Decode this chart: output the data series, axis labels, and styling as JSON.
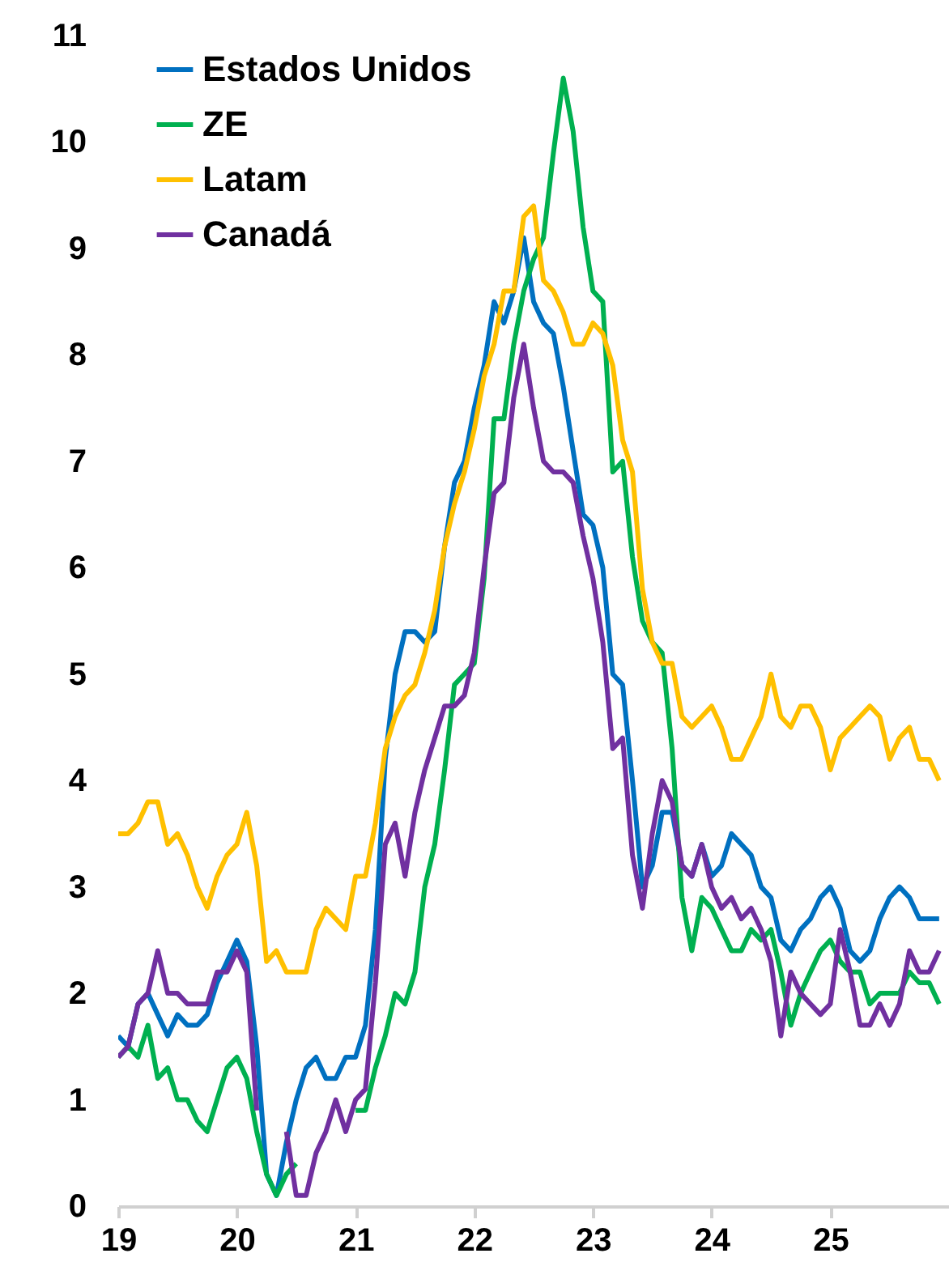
{
  "chart_data": {
    "type": "line",
    "x": [
      19,
      19.083,
      19.167,
      19.25,
      19.333,
      19.417,
      19.5,
      19.583,
      19.667,
      19.75,
      19.833,
      19.917,
      20,
      20.083,
      20.167,
      20.25,
      20.333,
      20.417,
      20.5,
      20.583,
      20.667,
      20.75,
      20.833,
      20.917,
      21,
      21.083,
      21.167,
      21.25,
      21.333,
      21.417,
      21.5,
      21.583,
      21.667,
      21.75,
      21.833,
      21.917,
      22,
      22.083,
      22.167,
      22.25,
      22.333,
      22.417,
      22.5,
      22.583,
      22.667,
      22.75,
      22.833,
      22.917,
      23,
      23.083,
      23.167,
      23.25,
      23.333,
      23.417,
      23.5,
      23.583,
      23.667,
      23.75,
      23.833,
      23.917,
      24,
      24.083,
      24.167,
      24.25,
      24.333,
      24.417,
      24.5,
      24.583,
      24.667,
      24.75,
      24.833,
      24.917,
      25,
      25.083,
      25.167,
      25.25,
      25.333,
      25.417,
      25.5,
      25.583,
      25.667,
      25.75,
      25.833,
      25.917
    ],
    "series": [
      {
        "name": "Estados Unidos",
        "color": "#0070c0",
        "values": [
          1.6,
          1.5,
          1.9,
          2.0,
          1.8,
          1.6,
          1.8,
          1.7,
          1.7,
          1.8,
          2.1,
          2.3,
          2.5,
          2.3,
          1.5,
          0.3,
          0.1,
          0.6,
          1.0,
          1.3,
          1.4,
          1.2,
          1.2,
          1.4,
          1.4,
          1.7,
          2.6,
          4.2,
          5.0,
          5.4,
          5.4,
          5.3,
          5.4,
          6.2,
          6.8,
          7.0,
          7.5,
          7.9,
          8.5,
          8.3,
          8.6,
          9.1,
          8.5,
          8.3,
          8.2,
          7.7,
          7.1,
          6.5,
          6.4,
          6.0,
          5.0,
          4.9,
          4.0,
          3.0,
          3.2,
          3.7,
          3.7,
          3.2,
          3.1,
          3.4,
          3.1,
          3.2,
          3.5,
          3.4,
          3.3,
          3.0,
          2.9,
          2.5,
          2.4,
          2.6,
          2.7,
          2.9,
          3.0,
          2.8,
          2.4,
          2.3,
          2.4,
          2.7,
          2.9,
          3.0,
          2.9,
          2.7,
          2.7,
          2.7
        ]
      },
      {
        "name": "ZE",
        "color": "#00b050",
        "values": [
          1.4,
          1.5,
          1.4,
          1.7,
          1.2,
          1.3,
          1.0,
          1.0,
          0.8,
          0.7,
          1.0,
          1.3,
          1.4,
          1.2,
          0.7,
          0.3,
          0.1,
          0.3,
          0.4,
          null,
          null,
          null,
          null,
          null,
          0.9,
          0.9,
          1.3,
          1.6,
          2.0,
          1.9,
          2.2,
          3.0,
          3.4,
          4.1,
          4.9,
          5.0,
          5.1,
          5.9,
          7.4,
          7.4,
          8.1,
          8.6,
          8.9,
          9.1,
          9.9,
          10.6,
          10.1,
          9.2,
          8.6,
          8.5,
          6.9,
          7.0,
          6.1,
          5.5,
          5.3,
          5.2,
          4.3,
          2.9,
          2.4,
          2.9,
          2.8,
          2.6,
          2.4,
          2.4,
          2.6,
          2.5,
          2.6,
          2.2,
          1.7,
          2.0,
          2.2,
          2.4,
          2.5,
          2.3,
          2.2,
          2.2,
          1.9,
          2.0,
          2.0,
          2.0,
          2.2,
          2.1,
          2.1,
          1.9
        ]
      },
      {
        "name": "Latam",
        "color": "#ffc000",
        "values": [
          3.5,
          3.5,
          3.6,
          3.8,
          3.8,
          3.4,
          3.5,
          3.3,
          3.0,
          2.8,
          3.1,
          3.3,
          3.4,
          3.7,
          3.2,
          2.3,
          2.4,
          2.2,
          2.2,
          2.2,
          2.6,
          2.8,
          2.7,
          2.6,
          3.1,
          3.1,
          3.6,
          4.3,
          4.6,
          4.8,
          4.9,
          5.2,
          5.6,
          6.2,
          6.6,
          6.9,
          7.3,
          7.8,
          8.1,
          8.6,
          8.6,
          9.3,
          9.4,
          8.7,
          8.6,
          8.4,
          8.1,
          8.1,
          8.3,
          8.2,
          7.9,
          7.2,
          6.9,
          5.8,
          5.3,
          5.1,
          5.1,
          4.6,
          4.5,
          4.6,
          4.7,
          4.5,
          4.2,
          4.2,
          4.4,
          4.6,
          5.0,
          4.6,
          4.5,
          4.7,
          4.7,
          4.5,
          4.1,
          4.4,
          4.5,
          4.6,
          4.7,
          4.6,
          4.2,
          4.4,
          4.5,
          4.2,
          4.2,
          4.0
        ]
      },
      {
        "name": "Canadá",
        "color": "#7030a0",
        "values": [
          1.4,
          1.5,
          1.9,
          2.0,
          2.4,
          2.0,
          2.0,
          1.9,
          1.9,
          1.9,
          2.2,
          2.2,
          2.4,
          2.2,
          0.9,
          null,
          null,
          0.7,
          0.1,
          0.1,
          0.5,
          0.7,
          1.0,
          0.7,
          1.0,
          1.1,
          2.1,
          3.4,
          3.6,
          3.1,
          3.7,
          4.1,
          4.4,
          4.7,
          4.7,
          4.8,
          5.2,
          6.0,
          6.7,
          6.8,
          7.6,
          8.1,
          7.5,
          7.0,
          6.9,
          6.9,
          6.8,
          6.3,
          5.9,
          5.3,
          4.3,
          4.4,
          3.3,
          2.8,
          3.5,
          4.0,
          3.8,
          3.2,
          3.1,
          3.4,
          3.0,
          2.8,
          2.9,
          2.7,
          2.8,
          2.6,
          2.3,
          1.6,
          2.2,
          2.0,
          1.9,
          1.8,
          1.9,
          2.6,
          2.2,
          1.7,
          1.7,
          1.9,
          1.7,
          1.9,
          2.4,
          2.2,
          2.2,
          2.4
        ]
      }
    ],
    "xlim": [
      19,
      26
    ],
    "xticks": [
      19,
      20,
      21,
      22,
      23,
      24,
      25
    ],
    "ylim": [
      0,
      11
    ],
    "yticks": [
      0,
      1,
      2,
      3,
      4,
      5,
      6,
      7,
      8,
      9,
      10,
      11
    ],
    "grid": false,
    "legend": "top left"
  }
}
